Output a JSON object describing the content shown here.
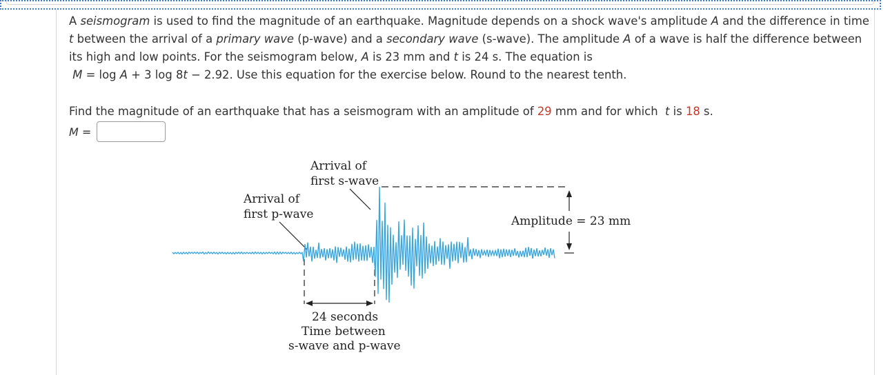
{
  "intro": {
    "s1_a": "A ",
    "s1_term": "seismogram",
    "s1_b": " is used to find the magnitude of an earthquake. Magnitude depends on a shock wave's amplitude ",
    "var_A": "A",
    "s1_c": " and the difference in time ",
    "var_t": "t",
    "s1_d": " between the arrival of a ",
    "term_primary": "primary wave",
    "s1_e": " (p-wave) and a ",
    "term_secondary": "secondary wave",
    "s1_f": " (s-wave). The amplitude ",
    "s1_g": " of a wave is half the difference between its high and low points. For the seismogram below, ",
    "s1_h": " is 23 mm and ",
    "s1_i": " is 24 s. The equation is",
    "eq_M": "M",
    "eq_1": " = log ",
    "eq_2": " + 3 log 8",
    "eq_3": " − 2.92.",
    "s1_j": "  Use this equation for the exercise below. Round to the nearest tenth."
  },
  "question": {
    "q_a": "Find the magnitude of an earthquake that has a seismogram with an amplitude of ",
    "amplitude": "29",
    "q_b": " mm and for which ",
    "var_t": "t",
    "q_c": " is ",
    "time": "18",
    "q_d": " s."
  },
  "answer": {
    "label_var": "M",
    "label_eq": " =",
    "value": "",
    "placeholder": ""
  },
  "figure": {
    "swave_line1": "Arrival of",
    "swave_line2": "first s-wave",
    "pwave_line1": "Arrival of",
    "pwave_line2": "first p-wave",
    "amplitude_label": "Amplitude = 23 mm",
    "time_line1": "24 seconds",
    "time_line2": "Time between",
    "time_line3": "s-wave and p-wave",
    "wave_color": "#3aa6e0"
  }
}
